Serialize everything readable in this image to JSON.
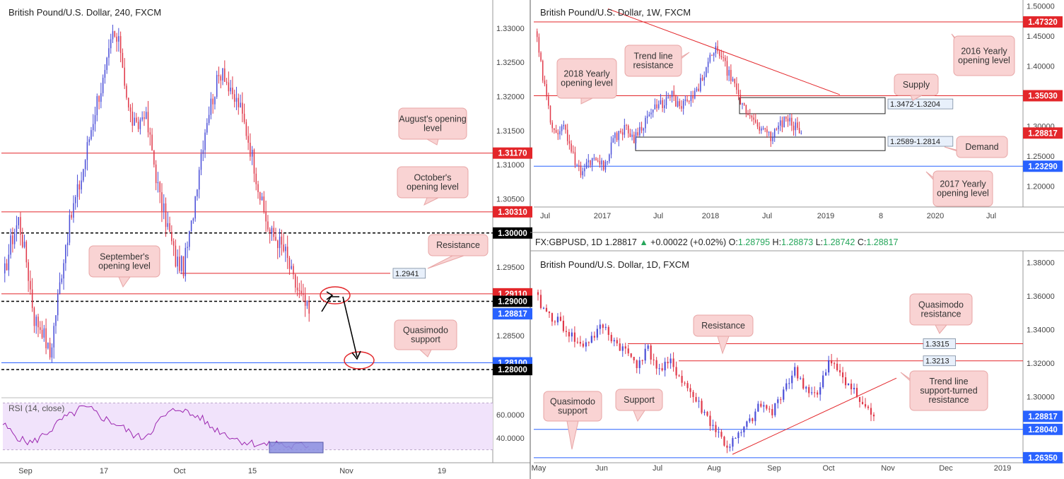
{
  "chart_data": [
    {
      "type": "line",
      "title": "British Pound/U.S. Dollar, 240, FXCM",
      "x_ticks": [
        "Sep",
        "17",
        "Oct",
        "15",
        "Nov",
        "19"
      ],
      "y_ticks": [
        "1.33000",
        "1.32500",
        "1.32000",
        "1.31500",
        "1.31000",
        "1.30500",
        "1.30000",
        "1.29500",
        "1.29000",
        "1.28500",
        "1.28000"
      ],
      "ylim": [
        1.2765,
        1.3337
      ],
      "price_labels": [
        {
          "value": 1.3117,
          "label": "1.31170",
          "color": "#e3262a"
        },
        {
          "value": 1.3031,
          "label": "1.30310",
          "color": "#e3262a"
        },
        {
          "value": 1.3,
          "label": "1.30000",
          "color": "#000000"
        },
        {
          "value": 1.2911,
          "label": "1.29110",
          "color": "#e3262a"
        },
        {
          "value": 1.29,
          "label": "1.29000",
          "color": "#000000"
        },
        {
          "value": 1.28817,
          "label": "1.28817",
          "color": "#2962ff"
        },
        {
          "value": 1.281,
          "label": "1.28100",
          "color": "#2962ff"
        },
        {
          "value": 1.28,
          "label": "1.28000",
          "color": "#000000"
        }
      ],
      "series": [
        {
          "values": [
            1.293,
            1.2985,
            1.302,
            1.296,
            1.2875,
            1.286,
            1.282,
            1.2905,
            1.2985,
            1.304,
            1.308,
            1.314,
            1.3195,
            1.323,
            1.329,
            1.327,
            1.318,
            1.315,
            1.318,
            1.312,
            1.305,
            1.301,
            1.296,
            1.295,
            1.301,
            1.31,
            1.317,
            1.321,
            1.3245,
            1.32,
            1.319,
            1.315,
            1.31,
            1.304,
            1.3,
            1.299,
            1.297,
            1.293,
            1.2905,
            1.2882
          ]
        }
      ],
      "annotations": [
        "August's opening level",
        "October's opening level",
        "Resistance",
        "September's opening level",
        "Quasimodo support",
        "1.2941"
      ],
      "rsi": {
        "label": "RSI (14, close)",
        "y_ticks": [
          "60.0000",
          "40.0000"
        ],
        "ylim": [
          28,
          72
        ],
        "values": [
          52,
          44,
          38,
          36,
          42,
          48,
          56,
          60,
          66,
          64,
          58,
          54,
          50,
          44,
          40,
          46,
          56,
          62,
          66,
          60,
          58,
          50,
          46,
          42,
          38,
          36,
          35,
          34,
          36,
          32,
          34,
          33
        ]
      }
    },
    {
      "type": "line",
      "title": "British Pound/U.S. Dollar, 1W, FXCM",
      "x_ticks": [
        "Jul",
        "2017",
        "Jul",
        "2018",
        "Jul",
        "2019",
        "8",
        "2020",
        "Jul"
      ],
      "y_ticks": [
        "1.50000",
        "1.45000",
        "1.40000",
        "1.35000",
        "1.30000",
        "1.25000",
        "1.20000"
      ],
      "ylim": [
        1.165,
        1.505
      ],
      "price_labels": [
        {
          "value": 1.4732,
          "label": "1.47320",
          "color": "#e3262a"
        },
        {
          "value": 1.3503,
          "label": "1.35030",
          "color": "#e3262a"
        },
        {
          "value": 1.28817,
          "label": "1.28817",
          "color": "#e3262a"
        },
        {
          "value": 1.2329,
          "label": "1.23290",
          "color": "#2962ff"
        }
      ],
      "series": [
        {
          "values": [
            1.46,
            1.38,
            1.31,
            1.29,
            1.295,
            1.25,
            1.22,
            1.24,
            1.25,
            1.23,
            1.27,
            1.29,
            1.295,
            1.28,
            1.3,
            1.32,
            1.33,
            1.34,
            1.35,
            1.33,
            1.34,
            1.35,
            1.38,
            1.41,
            1.43,
            1.4,
            1.37,
            1.34,
            1.32,
            1.31,
            1.29,
            1.28,
            1.3,
            1.31,
            1.3,
            1.2882
          ]
        }
      ],
      "annotations": [
        "Trend line resistance",
        "2018 Yearly opening level",
        "2016 Yearly opening level",
        "Supply",
        "Demand",
        "2017 Yearly opening level",
        "1.3472-1.3204",
        "1.2589-1.2814"
      ]
    },
    {
      "type": "line",
      "title": "British Pound/U.S. Dollar, 1D, FXCM",
      "x_ticks": [
        "May",
        "Jun",
        "Jul",
        "Aug",
        "Sep",
        "Oct",
        "Nov",
        "Dec",
        "2019"
      ],
      "y_ticks": [
        "1.38000",
        "1.36000",
        "1.34000",
        "1.32000",
        "1.30000"
      ],
      "ylim": [
        1.2605,
        1.3865
      ],
      "price_labels": [
        {
          "value": 1.28817,
          "label": "1.28817",
          "color": "#2962ff"
        },
        {
          "value": 1.2804,
          "label": "1.28040",
          "color": "#2962ff"
        },
        {
          "value": 1.2635,
          "label": "1.26350",
          "color": "#2962ff"
        }
      ],
      "series": [
        {
          "values": [
            1.36,
            1.35,
            1.345,
            1.338,
            1.33,
            1.335,
            1.342,
            1.333,
            1.327,
            1.32,
            1.328,
            1.315,
            1.32,
            1.31,
            1.3,
            1.29,
            1.28,
            1.27,
            1.276,
            1.285,
            1.295,
            1.29,
            1.305,
            1.315,
            1.305,
            1.3,
            1.32,
            1.315,
            1.305,
            1.295,
            1.2882
          ]
        }
      ],
      "annotations": [
        "Resistance",
        "Quasimodo resistance",
        "Trend line support-turned resistance",
        "Quasimodo support",
        "Support",
        "1.3315",
        "1.3213"
      ]
    }
  ],
  "ohlc_header": {
    "symbol": "FX:GBPUSD, 1D",
    "last": "1.28817",
    "change": "+0.00022 (+0.02%)",
    "o_label": "O:",
    "o": "1.28795",
    "h_label": "H:",
    "h": "1.28873",
    "l_label": "L:",
    "l": "1.28742",
    "c_label": "C:",
    "c": "1.28817"
  },
  "colors": {
    "up": "#4a4ed8",
    "down": "#e0394a",
    "red_line": "#e3262a",
    "blue_line": "#2962ff",
    "callout_bg": "#f9d3d3",
    "callout_border": "#e8a6a6",
    "rsi_fill": "#f1e3fb",
    "rsi_line": "#9c27b0"
  }
}
